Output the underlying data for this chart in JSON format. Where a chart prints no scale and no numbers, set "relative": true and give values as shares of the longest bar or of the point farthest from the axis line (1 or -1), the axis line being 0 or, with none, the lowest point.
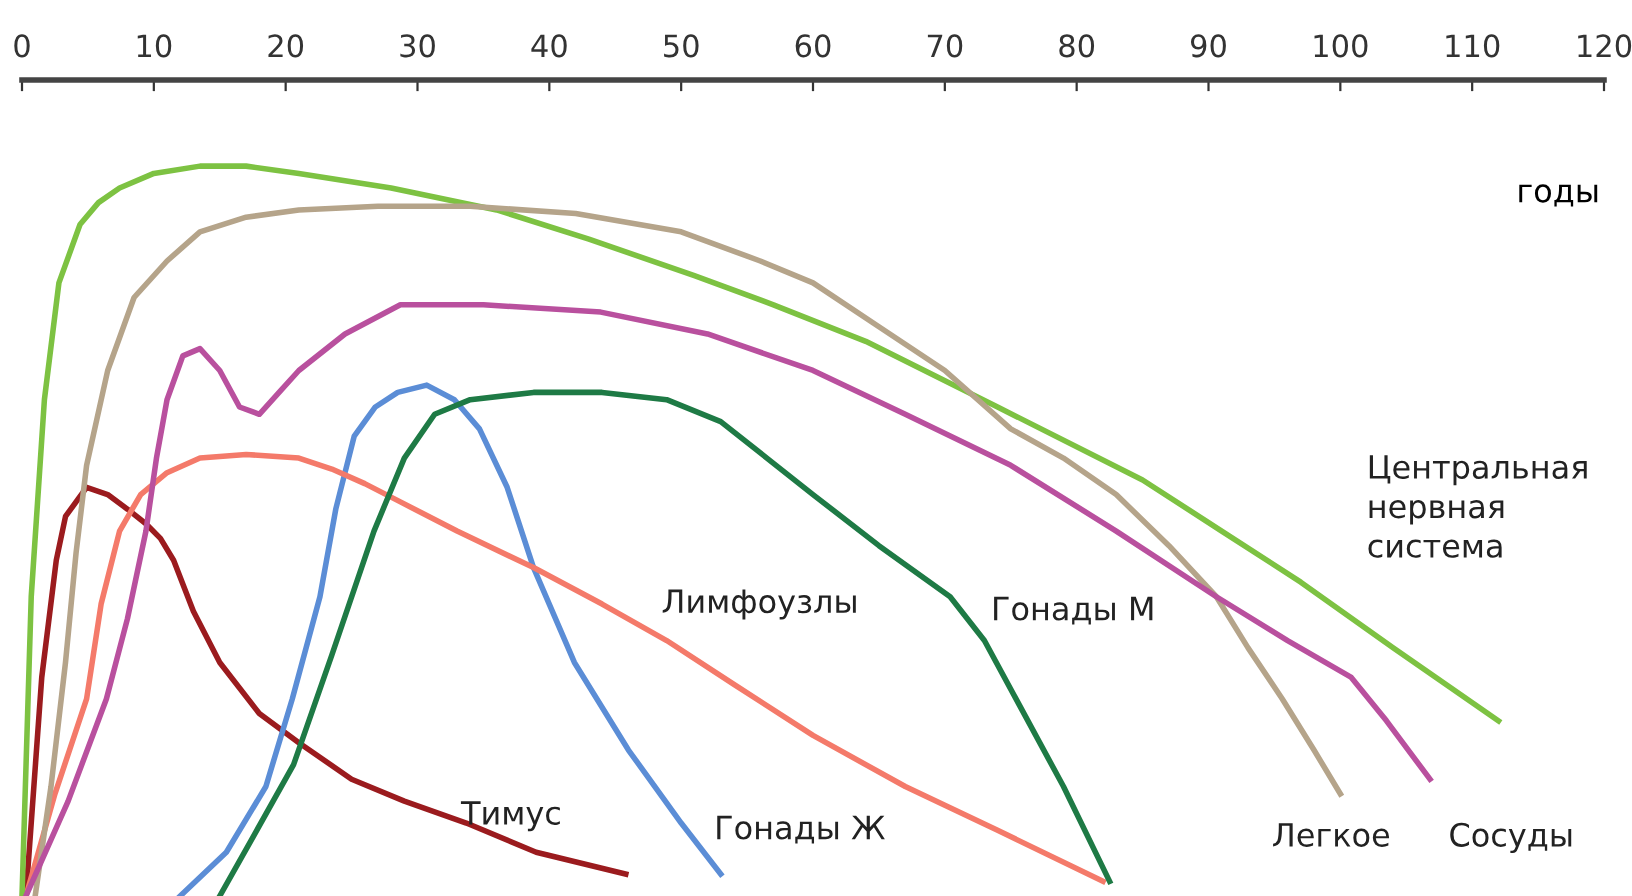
{
  "chart_data": {
    "type": "line",
    "relative": true,
    "xlabel": "годы",
    "xlim": [
      0,
      120
    ],
    "xticks": [
      0,
      10,
      20,
      30,
      40,
      50,
      60,
      70,
      80,
      90,
      100,
      110,
      120
    ],
    "grid": false,
    "legend": false,
    "marker": "none",
    "line_style": "solid",
    "series": [
      {
        "name": "Тимус",
        "color": "#9b1b1e",
        "x": [
          0.3,
          1.5,
          2.6,
          3.3,
          4.9,
          6.5,
          8,
          9.4,
          10.5,
          11.5,
          13,
          15,
          18,
          21,
          25,
          29,
          33.7,
          39,
          45.8
        ],
        "values": [
          0,
          0.3,
          0.46,
          0.52,
          0.56,
          0.55,
          0.53,
          0.51,
          0.49,
          0.46,
          0.39,
          0.32,
          0.25,
          0.21,
          0.16,
          0.13,
          0.1,
          0.06,
          0.03
        ]
      },
      {
        "name": "Гонады Ж",
        "color": "#5b8dd6",
        "x": [
          12,
          15.5,
          18.5,
          20.5,
          22.6,
          23.8,
          25.2,
          26.8,
          28.5,
          30.7,
          32.8,
          34.7,
          36.8,
          38.8,
          41.9,
          46,
          50,
          53
        ],
        "values": [
          0,
          0.06,
          0.15,
          0.27,
          0.41,
          0.53,
          0.63,
          0.67,
          0.69,
          0.7,
          0.68,
          0.64,
          0.56,
          0.45,
          0.32,
          0.2,
          0.1,
          0.03
        ]
      },
      {
        "name": "Лимфоузлы",
        "color": "#f47a6a",
        "x": [
          0.3,
          2.5,
          4.9,
          6,
          7.4,
          9,
          11,
          13.5,
          17,
          21,
          23.5,
          26,
          28.7,
          33,
          38.8,
          44,
          48.9,
          54,
          60,
          67,
          74,
          82
        ],
        "values": [
          0,
          0.14,
          0.27,
          0.4,
          0.5,
          0.55,
          0.58,
          0.6,
          0.605,
          0.6,
          0.585,
          0.565,
          0.54,
          0.5,
          0.45,
          0.4,
          0.35,
          0.29,
          0.22,
          0.15,
          0.09,
          0.02
        ]
      },
      {
        "name": "Гонады М",
        "color": "#1e7a45",
        "x": [
          15,
          17.5,
          20.6,
          23.5,
          26.7,
          29,
          31.3,
          34,
          38.8,
          44,
          48.9,
          53,
          56.5,
          60,
          65,
          70.4,
          73,
          75.4,
          79,
          82.5
        ],
        "values": [
          0,
          0.08,
          0.18,
          0.33,
          0.5,
          0.6,
          0.66,
          0.68,
          0.69,
          0.69,
          0.68,
          0.65,
          0.6,
          0.55,
          0.48,
          0.41,
          0.35,
          0.27,
          0.15,
          0.02
        ]
      },
      {
        "name": "Центральная\nнервная\nсистема",
        "color": "#7dc242",
        "x": [
          0,
          0.7,
          1.7,
          2.8,
          4.4,
          5.8,
          7.4,
          10,
          13.5,
          17,
          21,
          28,
          36,
          43,
          51,
          57,
          64,
          74,
          85,
          91,
          97,
          104,
          112
        ],
        "values": [
          0,
          0.41,
          0.68,
          0.84,
          0.92,
          0.95,
          0.97,
          0.99,
          1,
          1,
          0.99,
          0.97,
          0.94,
          0.9,
          0.85,
          0.81,
          0.76,
          0.67,
          0.57,
          0.5,
          0.43,
          0.34,
          0.24
        ]
      },
      {
        "name": "Легкое",
        "color": "#b5a48a",
        "x": [
          1,
          2.2,
          3.3,
          4.1,
          4.9,
          6.5,
          8.5,
          11,
          13.5,
          17,
          21,
          27,
          34,
          42,
          50,
          56,
          60,
          65,
          70,
          75,
          79,
          83,
          87,
          90.6,
          93,
          95.6,
          98,
          100
        ],
        "values": [
          0,
          0.15,
          0.32,
          0.47,
          0.59,
          0.72,
          0.82,
          0.87,
          0.91,
          0.93,
          0.94,
          0.945,
          0.945,
          0.935,
          0.91,
          0.87,
          0.84,
          0.78,
          0.72,
          0.64,
          0.6,
          0.55,
          0.48,
          0.41,
          0.34,
          0.27,
          0.2,
          0.14
        ]
      },
      {
        "name": "Сосуды",
        "color": "#b9509e",
        "x": [
          0.3,
          3.5,
          6.4,
          8,
          9.4,
          10.2,
          11,
          12.2,
          13.5,
          15,
          16.5,
          18,
          19.5,
          21,
          24.5,
          28.7,
          35,
          43.9,
          52,
          60,
          67,
          75,
          83,
          90.6,
          96,
          100.8,
          103.5,
          106.8
        ],
        "values": [
          0,
          0.13,
          0.27,
          0.38,
          0.5,
          0.6,
          0.68,
          0.74,
          0.75,
          0.72,
          0.67,
          0.66,
          0.69,
          0.72,
          0.77,
          0.81,
          0.81,
          0.8,
          0.77,
          0.72,
          0.66,
          0.59,
          0.5,
          0.41,
          0.35,
          0.3,
          0.24,
          0.16
        ]
      }
    ]
  }
}
